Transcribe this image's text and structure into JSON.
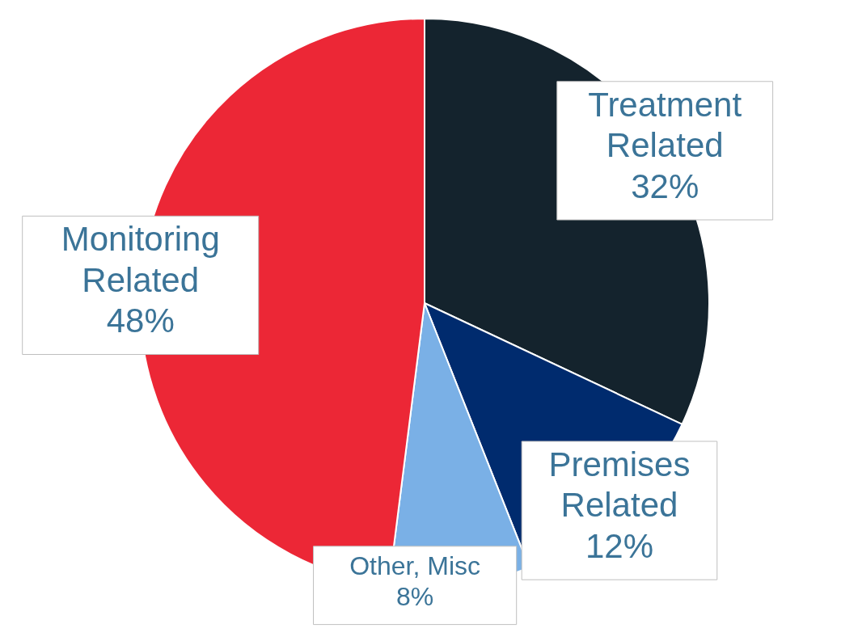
{
  "chart_data": {
    "type": "pie",
    "categories": [
      "Treatment Related",
      "Premises Related",
      "Other, Misc",
      "Monitoring Related"
    ],
    "values": [
      32,
      12,
      8,
      48
    ],
    "colors": [
      "#14232d",
      "#002b6e",
      "#7ab0e6",
      "#ec2736"
    ],
    "value_labels": [
      "32%",
      "12%",
      "8%",
      "48%"
    ]
  }
}
